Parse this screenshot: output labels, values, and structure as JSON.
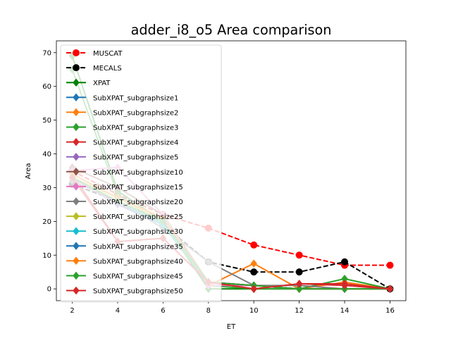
{
  "chart_data": {
    "type": "line",
    "title": "adder_i8_o5 Area comparison",
    "xlabel": "ET",
    "ylabel": "Area",
    "xlim": [
      1.3,
      16.7
    ],
    "ylim": [
      -3.5,
      73.5
    ],
    "xticks": [
      2,
      4,
      6,
      8,
      10,
      12,
      14,
      16
    ],
    "yticks": [
      0,
      10,
      20,
      30,
      40,
      50,
      60,
      70
    ],
    "grid": false,
    "legend_position": "upper-left",
    "series": [
      {
        "name": "MUSCAT",
        "color": "#ff0000",
        "dash": true,
        "marker": "circle",
        "x": [
          2,
          4,
          6,
          8,
          10,
          12,
          14,
          16
        ],
        "y": [
          35,
          28,
          22,
          18,
          13,
          10,
          7,
          7
        ]
      },
      {
        "name": "MECALS",
        "color": "#000000",
        "dash": true,
        "marker": "circle",
        "x": [
          2,
          4,
          6,
          8,
          10,
          12,
          14,
          16
        ],
        "y": [
          31,
          26,
          19,
          8,
          5,
          5,
          8,
          0
        ]
      },
      {
        "name": "XPAT",
        "color": "#008000",
        "dash": false,
        "marker": "diamond",
        "x": [
          2,
          4,
          6,
          8,
          10,
          12,
          14,
          16
        ],
        "y": [
          69,
          29,
          20,
          0,
          0,
          0,
          0,
          0
        ]
      },
      {
        "name": "SubXPAT_subgraphsize1",
        "color": "#1f77b4",
        "dash": false,
        "marker": "diamond",
        "x": [
          2,
          4,
          6,
          8,
          10,
          12,
          14,
          16
        ],
        "y": [
          33,
          25,
          19,
          2,
          1,
          0,
          0,
          0
        ]
      },
      {
        "name": "SubXPAT_subgraphsize2",
        "color": "#ff7f0e",
        "dash": false,
        "marker": "diamond",
        "x": [
          2,
          4,
          6,
          8,
          10,
          12,
          14,
          16
        ],
        "y": [
          34,
          27,
          20,
          1,
          7.5,
          0,
          2,
          0
        ]
      },
      {
        "name": "SubXPAT_subgraphsize3",
        "color": "#2ca02c",
        "dash": false,
        "marker": "diamond",
        "x": [
          2,
          4,
          6,
          8,
          10,
          12,
          14,
          16
        ],
        "y": [
          65,
          28,
          19,
          1,
          0,
          0,
          3,
          0
        ]
      },
      {
        "name": "SubXPAT_subgraphsize4",
        "color": "#d62728",
        "dash": false,
        "marker": "diamond",
        "x": [
          2,
          4,
          6,
          8,
          10,
          12,
          14,
          16
        ],
        "y": [
          34,
          14,
          15,
          2,
          0,
          1.5,
          1.5,
          0
        ]
      },
      {
        "name": "SubXPAT_subgraphsize5",
        "color": "#9467bd",
        "dash": false,
        "marker": "diamond",
        "x": [
          2,
          4,
          6,
          8,
          10,
          12,
          14,
          16
        ],
        "y": [
          33,
          25,
          20,
          2,
          1,
          0,
          0,
          0
        ]
      },
      {
        "name": "SubXPAT_subgraphsize10",
        "color": "#8c564b",
        "dash": false,
        "marker": "diamond",
        "x": [
          2,
          4,
          6,
          8,
          10,
          12,
          14,
          16
        ],
        "y": [
          36,
          30,
          22,
          2,
          1,
          0,
          0,
          0
        ]
      },
      {
        "name": "SubXPAT_subgraphsize15",
        "color": "#e377c2",
        "dash": false,
        "marker": "diamond",
        "x": [
          2,
          4,
          6,
          8,
          10,
          12,
          14,
          16
        ],
        "y": [
          35,
          36,
          22,
          1,
          1,
          0,
          0,
          0
        ]
      },
      {
        "name": "SubXPAT_subgraphsize20",
        "color": "#7f7f7f",
        "dash": false,
        "marker": "diamond",
        "x": [
          2,
          4,
          6,
          8,
          10,
          12,
          14,
          16
        ],
        "y": [
          32,
          26,
          18,
          8,
          1,
          1,
          0,
          0
        ]
      },
      {
        "name": "SubXPAT_subgraphsize25",
        "color": "#bcbd22",
        "dash": false,
        "marker": "diamond",
        "x": [
          2,
          4,
          6,
          8,
          10,
          12,
          14,
          16
        ],
        "y": [
          33,
          27,
          20,
          2,
          1,
          0,
          0,
          0
        ]
      },
      {
        "name": "SubXPAT_subgraphsize30",
        "color": "#17becf",
        "dash": false,
        "marker": "diamond",
        "x": [
          2,
          4,
          6,
          8,
          10,
          12,
          14,
          16
        ],
        "y": [
          33,
          26,
          19,
          2,
          1,
          0,
          0,
          0
        ]
      },
      {
        "name": "SubXPAT_subgraphsize35",
        "color": "#1f77b4",
        "dash": false,
        "marker": "diamond",
        "x": [
          2,
          4,
          6,
          8,
          10,
          12,
          14,
          16
        ],
        "y": [
          33,
          26,
          20,
          2,
          1,
          0,
          0,
          0
        ]
      },
      {
        "name": "SubXPAT_subgraphsize40",
        "color": "#ff7f0e",
        "dash": false,
        "marker": "diamond",
        "x": [
          2,
          4,
          6,
          8,
          10,
          12,
          14,
          16
        ],
        "y": [
          34,
          27,
          21,
          2,
          1,
          0,
          0,
          0
        ]
      },
      {
        "name": "SubXPAT_subgraphsize45",
        "color": "#2ca02c",
        "dash": false,
        "marker": "diamond",
        "x": [
          2,
          4,
          6,
          8,
          10,
          12,
          14,
          16
        ],
        "y": [
          33,
          26,
          20,
          2,
          1,
          0,
          0,
          0
        ]
      },
      {
        "name": "SubXPAT_subgraphsize50",
        "color": "#d62728",
        "dash": false,
        "marker": "diamond",
        "x": [
          2,
          4,
          6,
          8,
          10,
          12,
          14,
          16
        ],
        "y": [
          33,
          14,
          15,
          2,
          0,
          1.5,
          1,
          0
        ]
      }
    ]
  }
}
